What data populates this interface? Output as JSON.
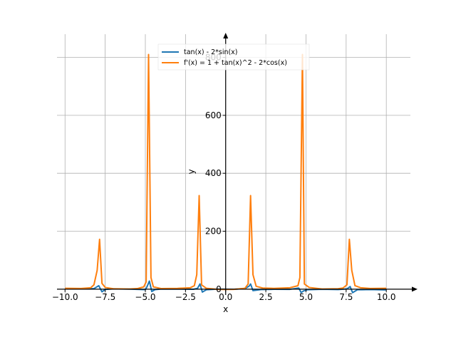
{
  "chart_data": {
    "type": "line",
    "xlabel": "x",
    "ylabel": "y",
    "xlim": [
      -10.5,
      11.5
    ],
    "ylim": [
      -20,
      880
    ],
    "grid": true,
    "legend_position": "top-center",
    "x_ticks": [
      {
        "value": -10,
        "label": "−10.0"
      },
      {
        "value": -7.5,
        "label": "−7.5"
      },
      {
        "value": -5,
        "label": "−5.0"
      },
      {
        "value": -2.5,
        "label": "−2.5"
      },
      {
        "value": 0,
        "label": "0.0"
      },
      {
        "value": 2.5,
        "label": "2.5"
      },
      {
        "value": 5,
        "label": "5.0"
      },
      {
        "value": 7.5,
        "label": "7.5"
      },
      {
        "value": 10,
        "label": "10.0"
      }
    ],
    "y_ticks": [
      {
        "value": 0,
        "label": "0"
      },
      {
        "value": 200,
        "label": "200"
      },
      {
        "value": 400,
        "label": "400"
      },
      {
        "value": 600,
        "label": "600"
      },
      {
        "value": 800,
        "label": "800"
      }
    ],
    "series": [
      {
        "name": "tan(x) - 2*sin(x)",
        "color": "#1f77b4",
        "points": [
          [
            -10,
            2.5
          ],
          [
            -9,
            1.3
          ],
          [
            -8.2,
            2.0
          ],
          [
            -7.9,
            12.0
          ],
          [
            -7.7,
            -9.0
          ],
          [
            -7.5,
            -1.0
          ],
          [
            -7,
            1.3
          ],
          [
            -6,
            0.3
          ],
          [
            -5,
            -1.5
          ],
          [
            -4.9,
            8.0
          ],
          [
            -4.75,
            28.0
          ],
          [
            -4.6,
            -8.0
          ],
          [
            -4.4,
            -1.5
          ],
          [
            -4,
            0.5
          ],
          [
            -3,
            0.4
          ],
          [
            -2,
            -0.4
          ],
          [
            -1.75,
            3.0
          ],
          [
            -1.6,
            18.0
          ],
          [
            -1.45,
            -10.0
          ],
          [
            -1.2,
            -2.0
          ],
          [
            -0.5,
            0.4
          ],
          [
            0,
            0
          ],
          [
            0.5,
            -0.4
          ],
          [
            1.2,
            2.0
          ],
          [
            1.45,
            10.0
          ],
          [
            1.55,
            18.0
          ],
          [
            1.7,
            -5.0
          ],
          [
            2.2,
            -1.2
          ],
          [
            3,
            -0.4
          ],
          [
            4,
            -0.5
          ],
          [
            4.55,
            4.0
          ],
          [
            4.7,
            -12.0
          ],
          [
            4.85,
            -6.0
          ],
          [
            5.1,
            -2.0
          ],
          [
            6,
            -0.3
          ],
          [
            7,
            -1.3
          ],
          [
            7.55,
            1.0
          ],
          [
            7.75,
            9.0
          ],
          [
            7.9,
            -12.0
          ],
          [
            8.2,
            -2.0
          ],
          [
            9,
            -1.3
          ],
          [
            10,
            -2.5
          ]
        ]
      },
      {
        "name": "f'(x) = 1 + tan(x)^2 - 2*cos(x)",
        "color": "#ff7f0e",
        "points": [
          [
            -10,
            3.0
          ],
          [
            -9,
            2.5
          ],
          [
            -8.4,
            5.0
          ],
          [
            -8.2,
            15.0
          ],
          [
            -8.0,
            65.0
          ],
          [
            -7.85,
            172.0
          ],
          [
            -7.7,
            20.0
          ],
          [
            -7.5,
            6.0
          ],
          [
            -7,
            1.5
          ],
          [
            -6,
            0.5
          ],
          [
            -5.5,
            2.0
          ],
          [
            -5.1,
            8.0
          ],
          [
            -4.95,
            25.0
          ],
          [
            -4.8,
            810.0
          ],
          [
            -4.65,
            40.0
          ],
          [
            -4.5,
            8.0
          ],
          [
            -4,
            2.0
          ],
          [
            -3,
            2.8
          ],
          [
            -2.2,
            5.0
          ],
          [
            -1.95,
            12.0
          ],
          [
            -1.8,
            50.0
          ],
          [
            -1.65,
            323.0
          ],
          [
            -1.5,
            15.0
          ],
          [
            -1.2,
            3.0
          ],
          [
            -0.5,
            -0.5
          ],
          [
            0,
            -1.0
          ],
          [
            0.5,
            -0.5
          ],
          [
            1.2,
            3.0
          ],
          [
            1.4,
            18.0
          ],
          [
            1.55,
            323.0
          ],
          [
            1.7,
            50.0
          ],
          [
            1.9,
            10.0
          ],
          [
            2.3,
            4.0
          ],
          [
            3,
            2.8
          ],
          [
            4,
            5.0
          ],
          [
            4.5,
            12.0
          ],
          [
            4.62,
            40.0
          ],
          [
            4.78,
            810.0
          ],
          [
            4.9,
            18.0
          ],
          [
            5.2,
            6.0
          ],
          [
            6,
            0.5
          ],
          [
            7,
            1.5
          ],
          [
            7.3,
            4.0
          ],
          [
            7.55,
            15.0
          ],
          [
            7.7,
            172.0
          ],
          [
            7.85,
            65.0
          ],
          [
            8.05,
            12.0
          ],
          [
            8.4,
            5.0
          ],
          [
            9,
            2.5
          ],
          [
            10,
            3.0
          ]
        ]
      }
    ]
  }
}
